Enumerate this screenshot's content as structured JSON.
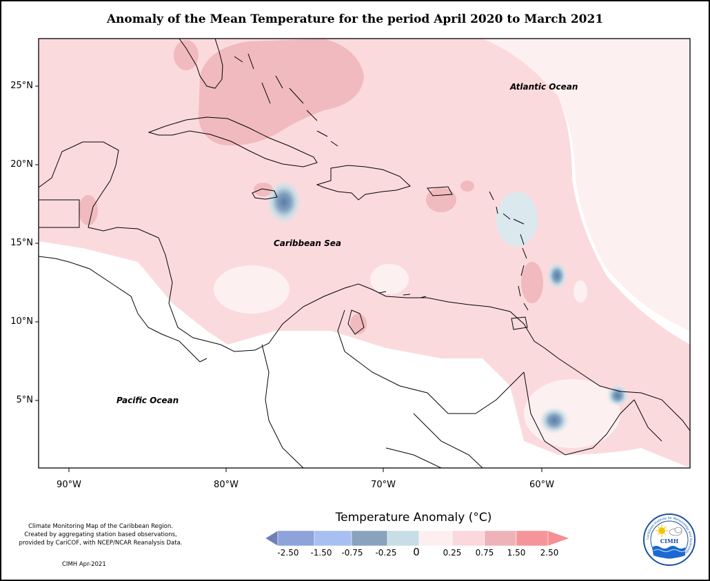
{
  "map": {
    "title": "Anomaly of the Mean Temperature for the period April 2020 to March 2021",
    "y_axis_labels": [
      "25°N",
      "20°N",
      "15°N",
      "10°N",
      "5°N"
    ],
    "x_axis_labels": [
      "90°W",
      "80°W",
      "70°W",
      "60°W"
    ],
    "ocean_labels": {
      "atlantic": "Atlantic Ocean",
      "caribbean": "Caribbean Sea",
      "pacific": "Pacific Ocean"
    },
    "notes": {
      "line1": "Climate Monitoring Map of the Caribbean Region.",
      "line2": "Created by aggregating station based observations,",
      "line3": "provided by CariCOF, with NCEP/NCAR Reanalysis Data.",
      "credit": "CIMH Apr-2021"
    }
  },
  "legend": {
    "title": "Temperature Anomaly (°C)",
    "ticks": [
      "-2.50",
      "-1.50",
      "-0.75",
      "-0.25",
      "0",
      "0.25",
      "0.75",
      "1.50",
      "2.50"
    ],
    "colors": [
      "#6f7fb8",
      "#8ea3dc",
      "#a8bff2",
      "#8aa3bd",
      "#c8dde5",
      "#fdeff0",
      "#fbd8dd",
      "#eeb3b8",
      "#f69599",
      "#f58f94"
    ]
  },
  "logo": {
    "text": "CIMH",
    "ring_text": "Caribbean Institute for Meteorology and Hydrology",
    "colors": {
      "ring": "#1a4fa0",
      "sun": "#f2c500",
      "wave": "#1a6ad0"
    }
  }
}
